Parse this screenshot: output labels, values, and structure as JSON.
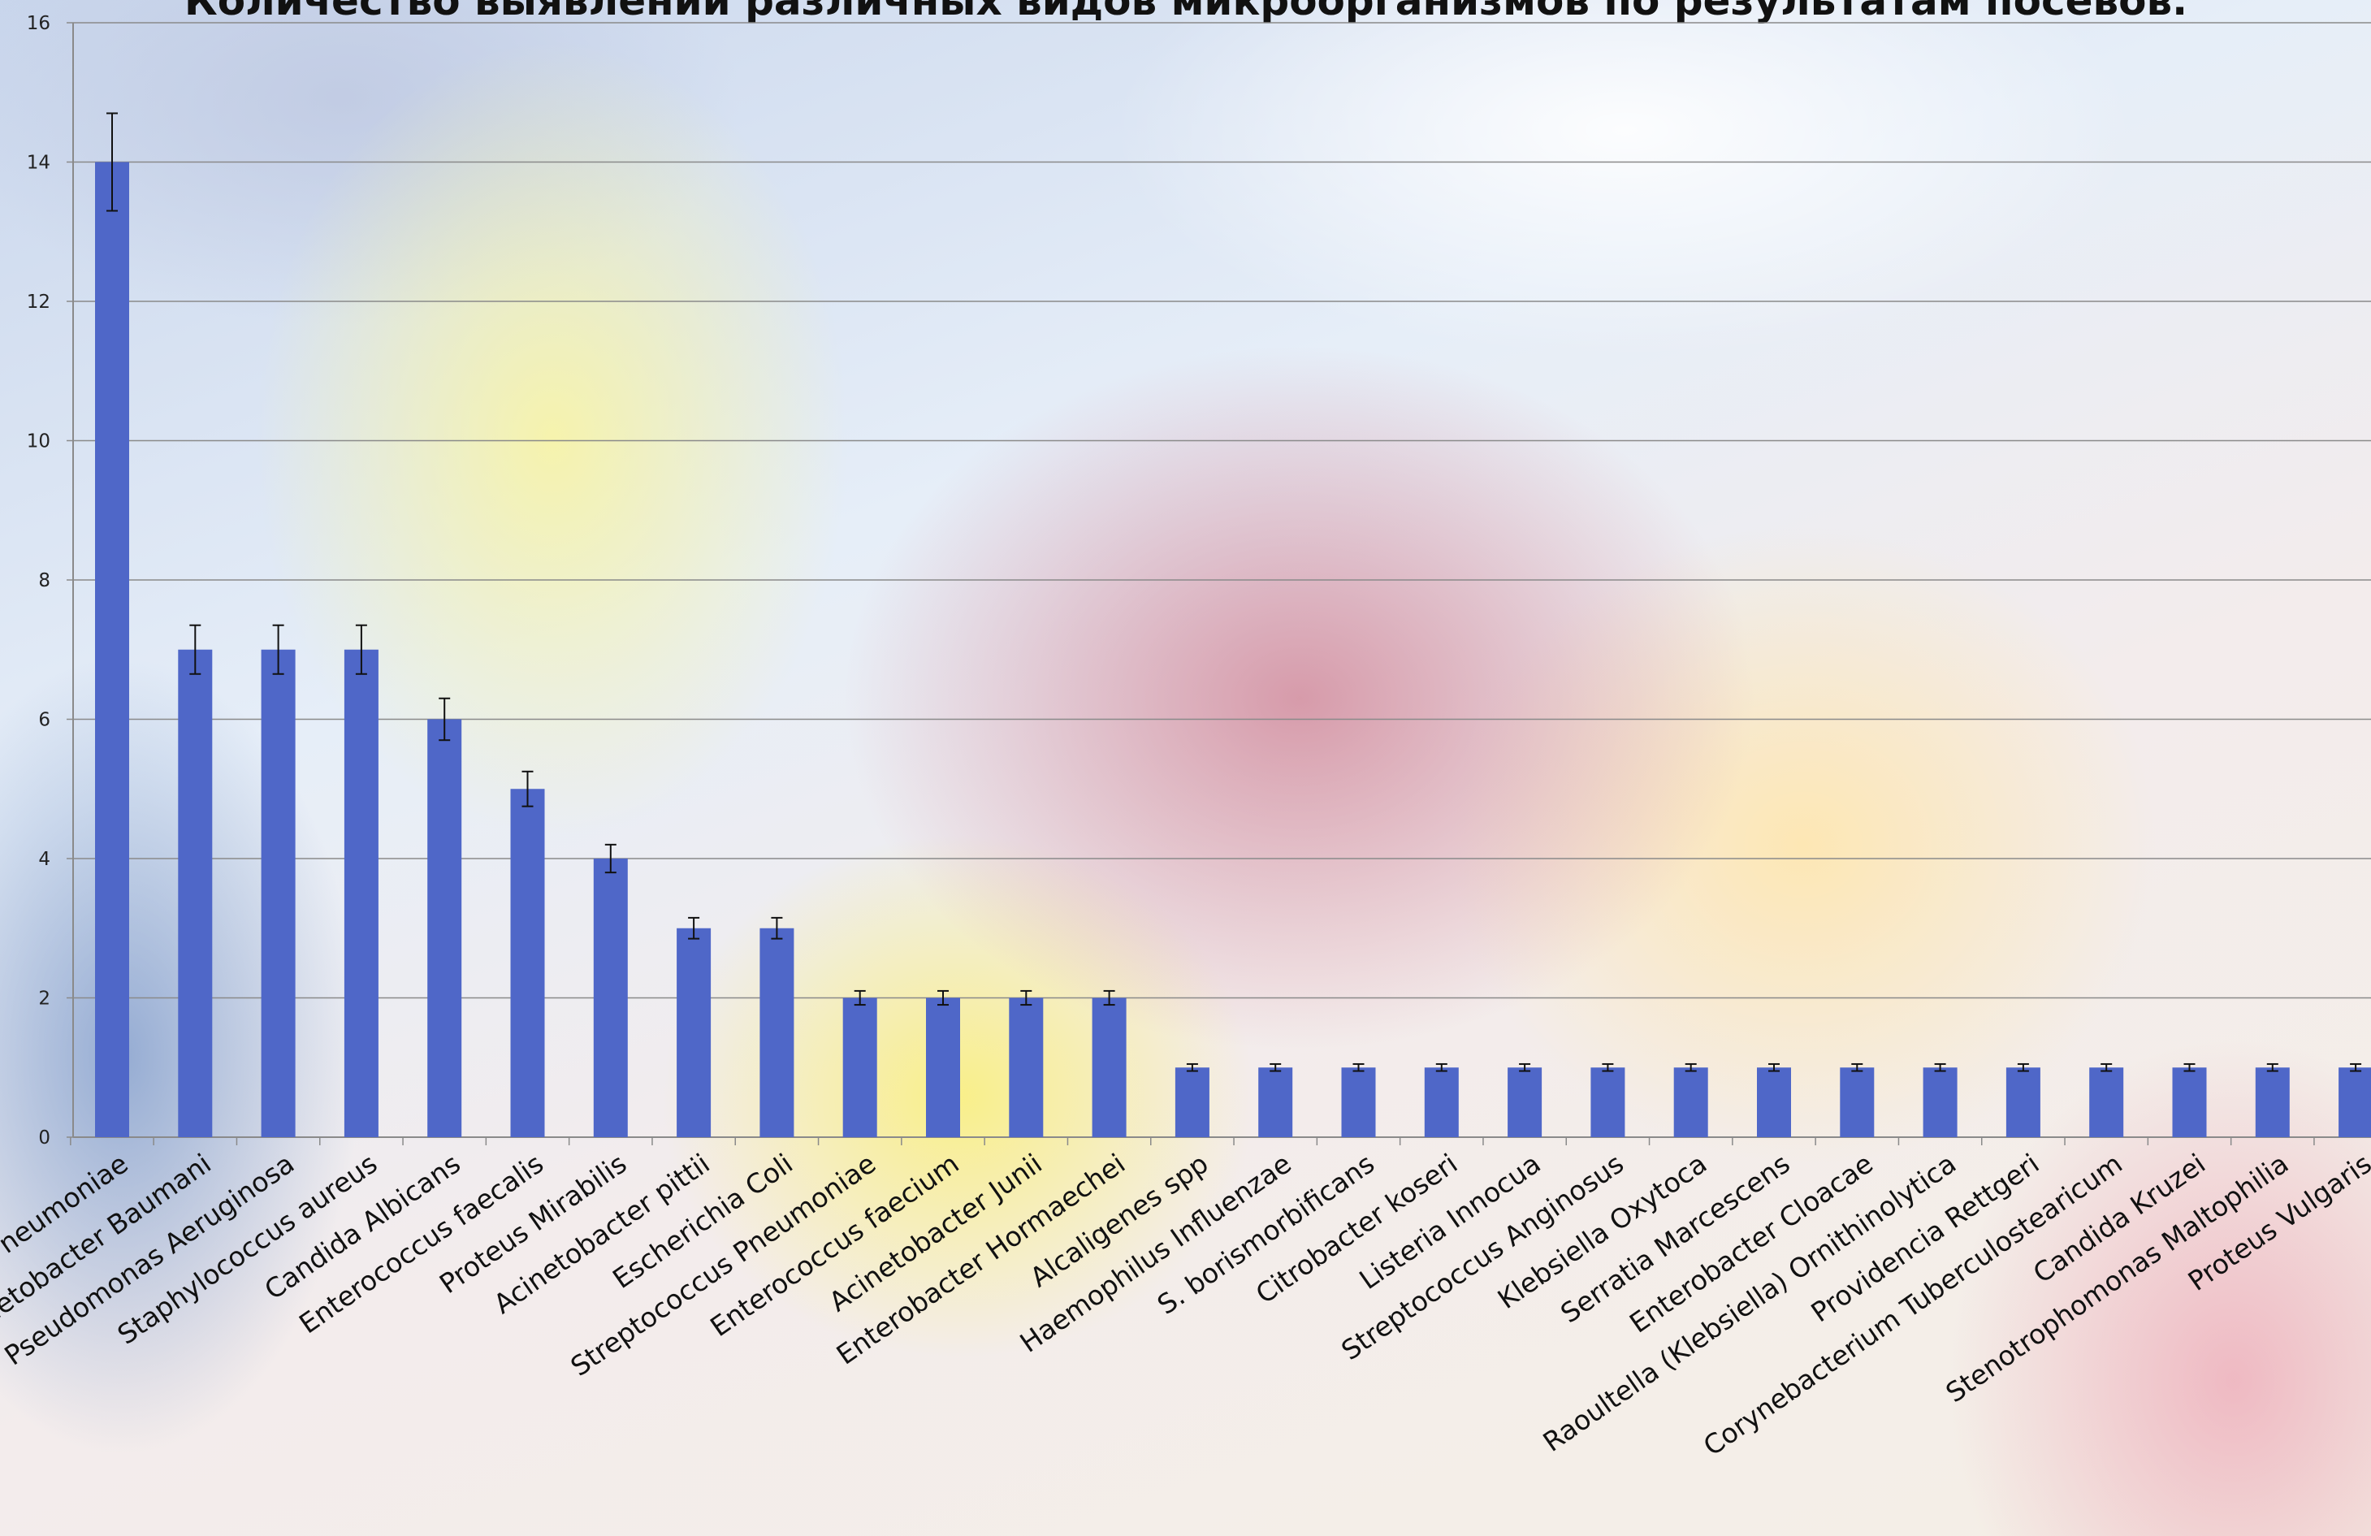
{
  "colors": {
    "bar": "#4f67c8",
    "grid": "#8a8a8a",
    "axis": "#8a8a8a",
    "error_bar": "#111111"
  },
  "chart_data": {
    "type": "bar",
    "title": "Количество выявлений различных видов микроорганизмов по результатам посевов.",
    "xlabel": "",
    "ylabel": "",
    "ylim": [
      0,
      16
    ],
    "yticks": [
      0,
      2,
      4,
      6,
      8,
      10,
      12,
      14,
      16
    ],
    "grid": true,
    "legend": "none",
    "error_bars": true,
    "error_fraction": 0.05,
    "categories": [
      "Klebsiella Pneumoniae",
      "Acinetobacter Baumani",
      "Pseudomonas Aeruginosa",
      "Staphylococcus aureus",
      "Candida Albicans",
      "Enterococcus faecalis",
      "Proteus Mirabilis",
      "Acinetobacter pittii",
      "Escherichia Coli",
      "Streptococcus Pneumoniae",
      "Enterococcus faecium",
      "Acinetobacter Junii",
      "Enterobacter Hormaechei",
      "Alcaligenes spp",
      "Haemophilus Influenzae",
      "S. borismorbificans",
      "Citrobacter koseri",
      "Listeria Innocua",
      "Streptococcus Anginosus",
      "Klebsiella Oxytoca",
      "Serratia Marcescens",
      "Enterobacter Cloacae",
      "Raoultella (Klebsiella) Ornithinolytica",
      "Providencia Rettgeri",
      "Corynebacterium Tuberculostearicum",
      "Candida Kruzei",
      "Stenotrophomonas Maltophilia",
      "Proteus Vulgaris"
    ],
    "values": [
      14,
      7,
      7,
      7,
      6,
      5,
      4,
      3,
      3,
      2,
      2,
      2,
      2,
      1,
      1,
      1,
      1,
      1,
      1,
      1,
      1,
      1,
      1,
      1,
      1,
      1,
      1,
      1
    ]
  }
}
